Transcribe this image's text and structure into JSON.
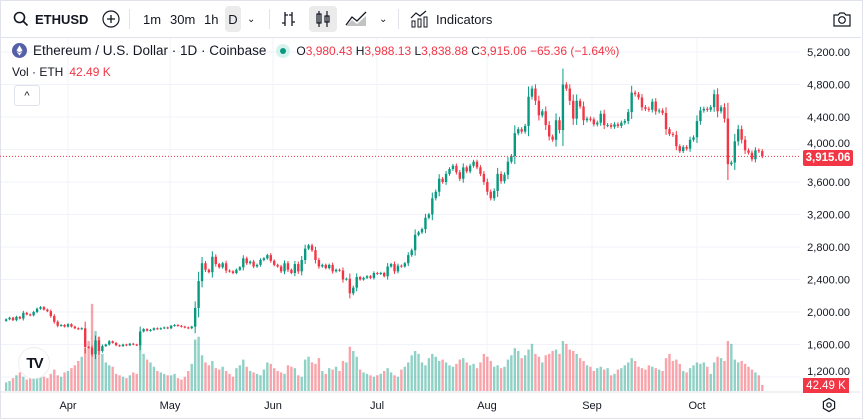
{
  "toolbar": {
    "symbol": "ETHUSD",
    "intervals": [
      "1m",
      "30m",
      "1h",
      "D"
    ],
    "active_interval": "D",
    "indicators_label": "Indicators",
    "icons": [
      "search-icon",
      "plus-circle-icon",
      "chevron-down-icon",
      "bars-icon",
      "candles-icon",
      "area-chart-icon",
      "chevron-down-icon",
      "indicators-icon",
      "camera-icon"
    ]
  },
  "legend": {
    "title": "Ethereum / U.S. Dollar · 1D · Coinbase",
    "o_label": "O",
    "o": "3,980.43",
    "h_label": "H",
    "h": "3,988.13",
    "l_label": "L",
    "l": "3,838.88",
    "c_label": "C",
    "c": "3,915.06",
    "change": "−65.36 (−1.64%)",
    "vol_label": "Vol · ETH",
    "vol_value": "42.49 K",
    "collapse_icon": "^"
  },
  "colors": {
    "up": "#089981",
    "down": "#f23645",
    "grid": "#f0f3fa"
  },
  "chart_data": {
    "type": "candlestick",
    "x_ticks": [
      "Apr",
      "May",
      "Jun",
      "Jul",
      "Aug",
      "Sep",
      "Oct"
    ],
    "y_ticks": [
      "5,200.00",
      "4,800.00",
      "4,400.00",
      "4,000.00",
      "3,600.00",
      "3,200.00",
      "2,800.00",
      "2,400.00",
      "2,000.00",
      "1,600.00",
      "1,200.00"
    ],
    "ylim": [
      1200,
      5200
    ],
    "last_price": 3915.06,
    "last_price_label": "3,915.06",
    "last_volume_label": "42.49 K",
    "close": [
      1910,
      1930,
      1900,
      1940,
      1920,
      1990,
      1970,
      1960,
      2000,
      2040,
      2060,
      2030,
      2010,
      1950,
      1880,
      1830,
      1840,
      1820,
      1850,
      1820,
      1800,
      1790,
      1800,
      1570,
      1560,
      1480,
      1650,
      1520,
      1580,
      1600,
      1640,
      1620,
      1590,
      1580,
      1600,
      1590,
      1610,
      1600,
      1590,
      1760,
      1790,
      1770,
      1780,
      1800,
      1790,
      1800,
      1810,
      1800,
      1830,
      1840,
      1830,
      1820,
      1810,
      1800,
      1820,
      2050,
      2380,
      2600,
      2520,
      2490,
      2680,
      2590,
      2550,
      2600,
      2510,
      2500,
      2480,
      2520,
      2550,
      2660,
      2600,
      2620,
      2560,
      2580,
      2640,
      2660,
      2700,
      2630,
      2580,
      2560,
      2500,
      2600,
      2520,
      2480,
      2590,
      2500,
      2640,
      2780,
      2820,
      2760,
      2640,
      2560,
      2580,
      2540,
      2580,
      2500,
      2520,
      2510,
      2400,
      2410,
      2230,
      2300,
      2430,
      2400,
      2420,
      2440,
      2420,
      2480,
      2470,
      2480,
      2440,
      2560,
      2590,
      2500,
      2570,
      2560,
      2600,
      2700,
      2760,
      2950,
      2980,
      3020,
      3160,
      3200,
      3400,
      3480,
      3640,
      3600,
      3700,
      3760,
      3800,
      3720,
      3640,
      3780,
      3730,
      3800,
      3850,
      3780,
      3700,
      3600,
      3480,
      3400,
      3490,
      3700,
      3610,
      3690,
      3850,
      3920,
      4200,
      4250,
      4220,
      4290,
      4650,
      4750,
      4600,
      4420,
      4470,
      4300,
      4160,
      4120,
      4360,
      4240,
      4800,
      4750,
      4600,
      4380,
      4600,
      4530,
      4360,
      4380,
      4370,
      4310,
      4330,
      4440,
      4300,
      4300,
      4280,
      4310,
      4290,
      4330,
      4350,
      4460,
      4700,
      4680,
      4640,
      4520,
      4500,
      4490,
      4590,
      4470,
      4480,
      4450,
      4250,
      4190,
      4180,
      4040,
      3980,
      4030,
      4010,
      4120,
      4150,
      4350,
      4480,
      4500,
      4490,
      4520,
      4680,
      4470,
      4520,
      4380,
      3820,
      3840,
      4100,
      4250,
      4120,
      3990,
      3960,
      3880,
      3990,
      3980.43,
      3915.06
    ],
    "volume_k": [
      60,
      70,
      90,
      110,
      130,
      100,
      80,
      90,
      140,
      130,
      110,
      100,
      90,
      120,
      150,
      110,
      100,
      130,
      140,
      160,
      180,
      210,
      240,
      300,
      350,
      610,
      420,
      380,
      260,
      200,
      180,
      170,
      120,
      110,
      100,
      90,
      110,
      130,
      120,
      320,
      260,
      220,
      200,
      170,
      140,
      130,
      120,
      110,
      110,
      120,
      90,
      80,
      100,
      140,
      190,
      360,
      380,
      250,
      200,
      180,
      210,
      160,
      150,
      170,
      140,
      120,
      100,
      160,
      180,
      220,
      170,
      140,
      130,
      120,
      110,
      150,
      200,
      190,
      160,
      140,
      130,
      120,
      180,
      170,
      160,
      110,
      100,
      220,
      240,
      200,
      190,
      230,
      140,
      120,
      160,
      150,
      170,
      140,
      210,
      200,
      310,
      280,
      240,
      150,
      130,
      120,
      110,
      100,
      110,
      120,
      140,
      160,
      130,
      110,
      100,
      150,
      170,
      200,
      250,
      280,
      260,
      200,
      180,
      230,
      260,
      240,
      210,
      220,
      200,
      180,
      170,
      190,
      220,
      230,
      200,
      180,
      190,
      160,
      200,
      260,
      240,
      210,
      170,
      180,
      160,
      170,
      220,
      250,
      300,
      280,
      230,
      250,
      290,
      330,
      260,
      240,
      200,
      250,
      260,
      280,
      290,
      260,
      350,
      330,
      290,
      280,
      260,
      230,
      210,
      180,
      170,
      140,
      160,
      170,
      150,
      160,
      110,
      120,
      150,
      160,
      180,
      200,
      230,
      210,
      170,
      160,
      150,
      180,
      170,
      160,
      150,
      140,
      230,
      260,
      210,
      220,
      190,
      140,
      130,
      160,
      180,
      200,
      190,
      200,
      170,
      120,
      200,
      240,
      230,
      210,
      350,
      330,
      220,
      200,
      210,
      190,
      170,
      150,
      130,
      110,
      42.49
    ]
  }
}
